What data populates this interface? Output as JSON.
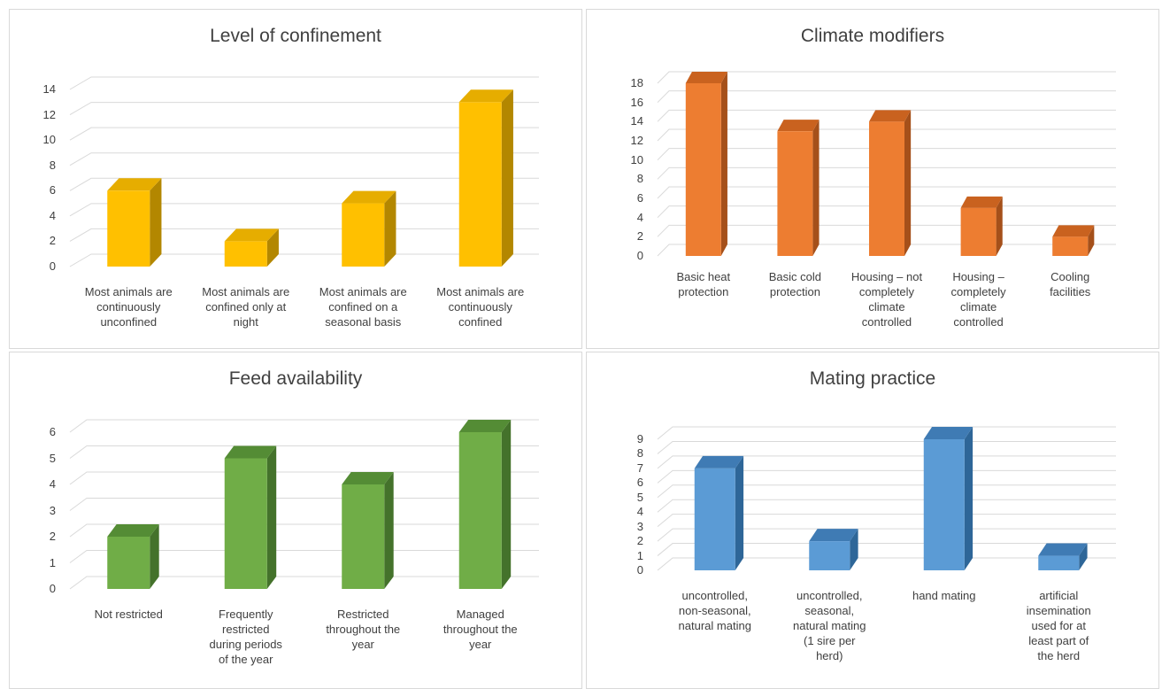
{
  "chart_data": [
    {
      "type": "bar",
      "title": "Level of confinement",
      "categories": [
        "Most animals are\ncontinuously\nunconfined",
        "Most animals are\nconfined only at\nnight",
        "Most animals are\nconfined on a\nseasonal basis",
        "Most animals are\ncontinuously\nconfined"
      ],
      "values": [
        6,
        2,
        5,
        13
      ],
      "yticks": [
        0,
        2,
        4,
        6,
        8,
        10,
        12,
        14
      ],
      "ylim": [
        0,
        14
      ],
      "color": "#ffc000",
      "side_color": "#b38700",
      "top_color": "#e6ad00",
      "grid": true,
      "legend": "none"
    },
    {
      "type": "bar",
      "title": "Climate modifiers",
      "categories": [
        "Basic heat\nprotection",
        "Basic cold\nprotection",
        "Housing – not\ncompletely\nclimate\ncontrolled",
        "Housing –\ncompletely\nclimate\ncontrolled",
        "Cooling\nfacilities"
      ],
      "values": [
        18,
        13,
        14,
        5,
        2
      ],
      "yticks": [
        0,
        2,
        4,
        6,
        8,
        10,
        12,
        14,
        16,
        18
      ],
      "ylim": [
        0,
        18
      ],
      "color": "#ed7d31",
      "side_color": "#a5501a",
      "top_color": "#c9621f",
      "grid": true,
      "legend": "none"
    },
    {
      "type": "bar",
      "title": "Feed availability",
      "categories": [
        "Not restricted",
        "Frequently\nrestricted\nduring periods\nof the year",
        "Restricted\nthroughout the\nyear",
        "Managed\nthroughout the\nyear"
      ],
      "values": [
        2,
        5,
        4,
        6
      ],
      "yticks": [
        0,
        1,
        2,
        3,
        4,
        5,
        6
      ],
      "ylim": [
        0,
        6
      ],
      "color": "#70ad47",
      "side_color": "#44722b",
      "top_color": "#548c35",
      "grid": true,
      "legend": "none"
    },
    {
      "type": "bar",
      "title": "Mating practice",
      "categories": [
        "uncontrolled,\nnon-seasonal,\nnatural mating",
        "uncontrolled,\nseasonal,\nnatural mating\n(1 sire per\nherd)",
        "hand mating",
        "artificial\ninsemination\nused for at\nleast part of\nthe herd"
      ],
      "values": [
        7,
        2,
        9,
        1
      ],
      "yticks": [
        0,
        1,
        2,
        3,
        4,
        5,
        6,
        7,
        8,
        9
      ],
      "ylim": [
        0,
        9
      ],
      "color": "#5b9bd5",
      "side_color": "#2e6698",
      "top_color": "#3f7bb4",
      "grid": true,
      "legend": "none"
    }
  ]
}
